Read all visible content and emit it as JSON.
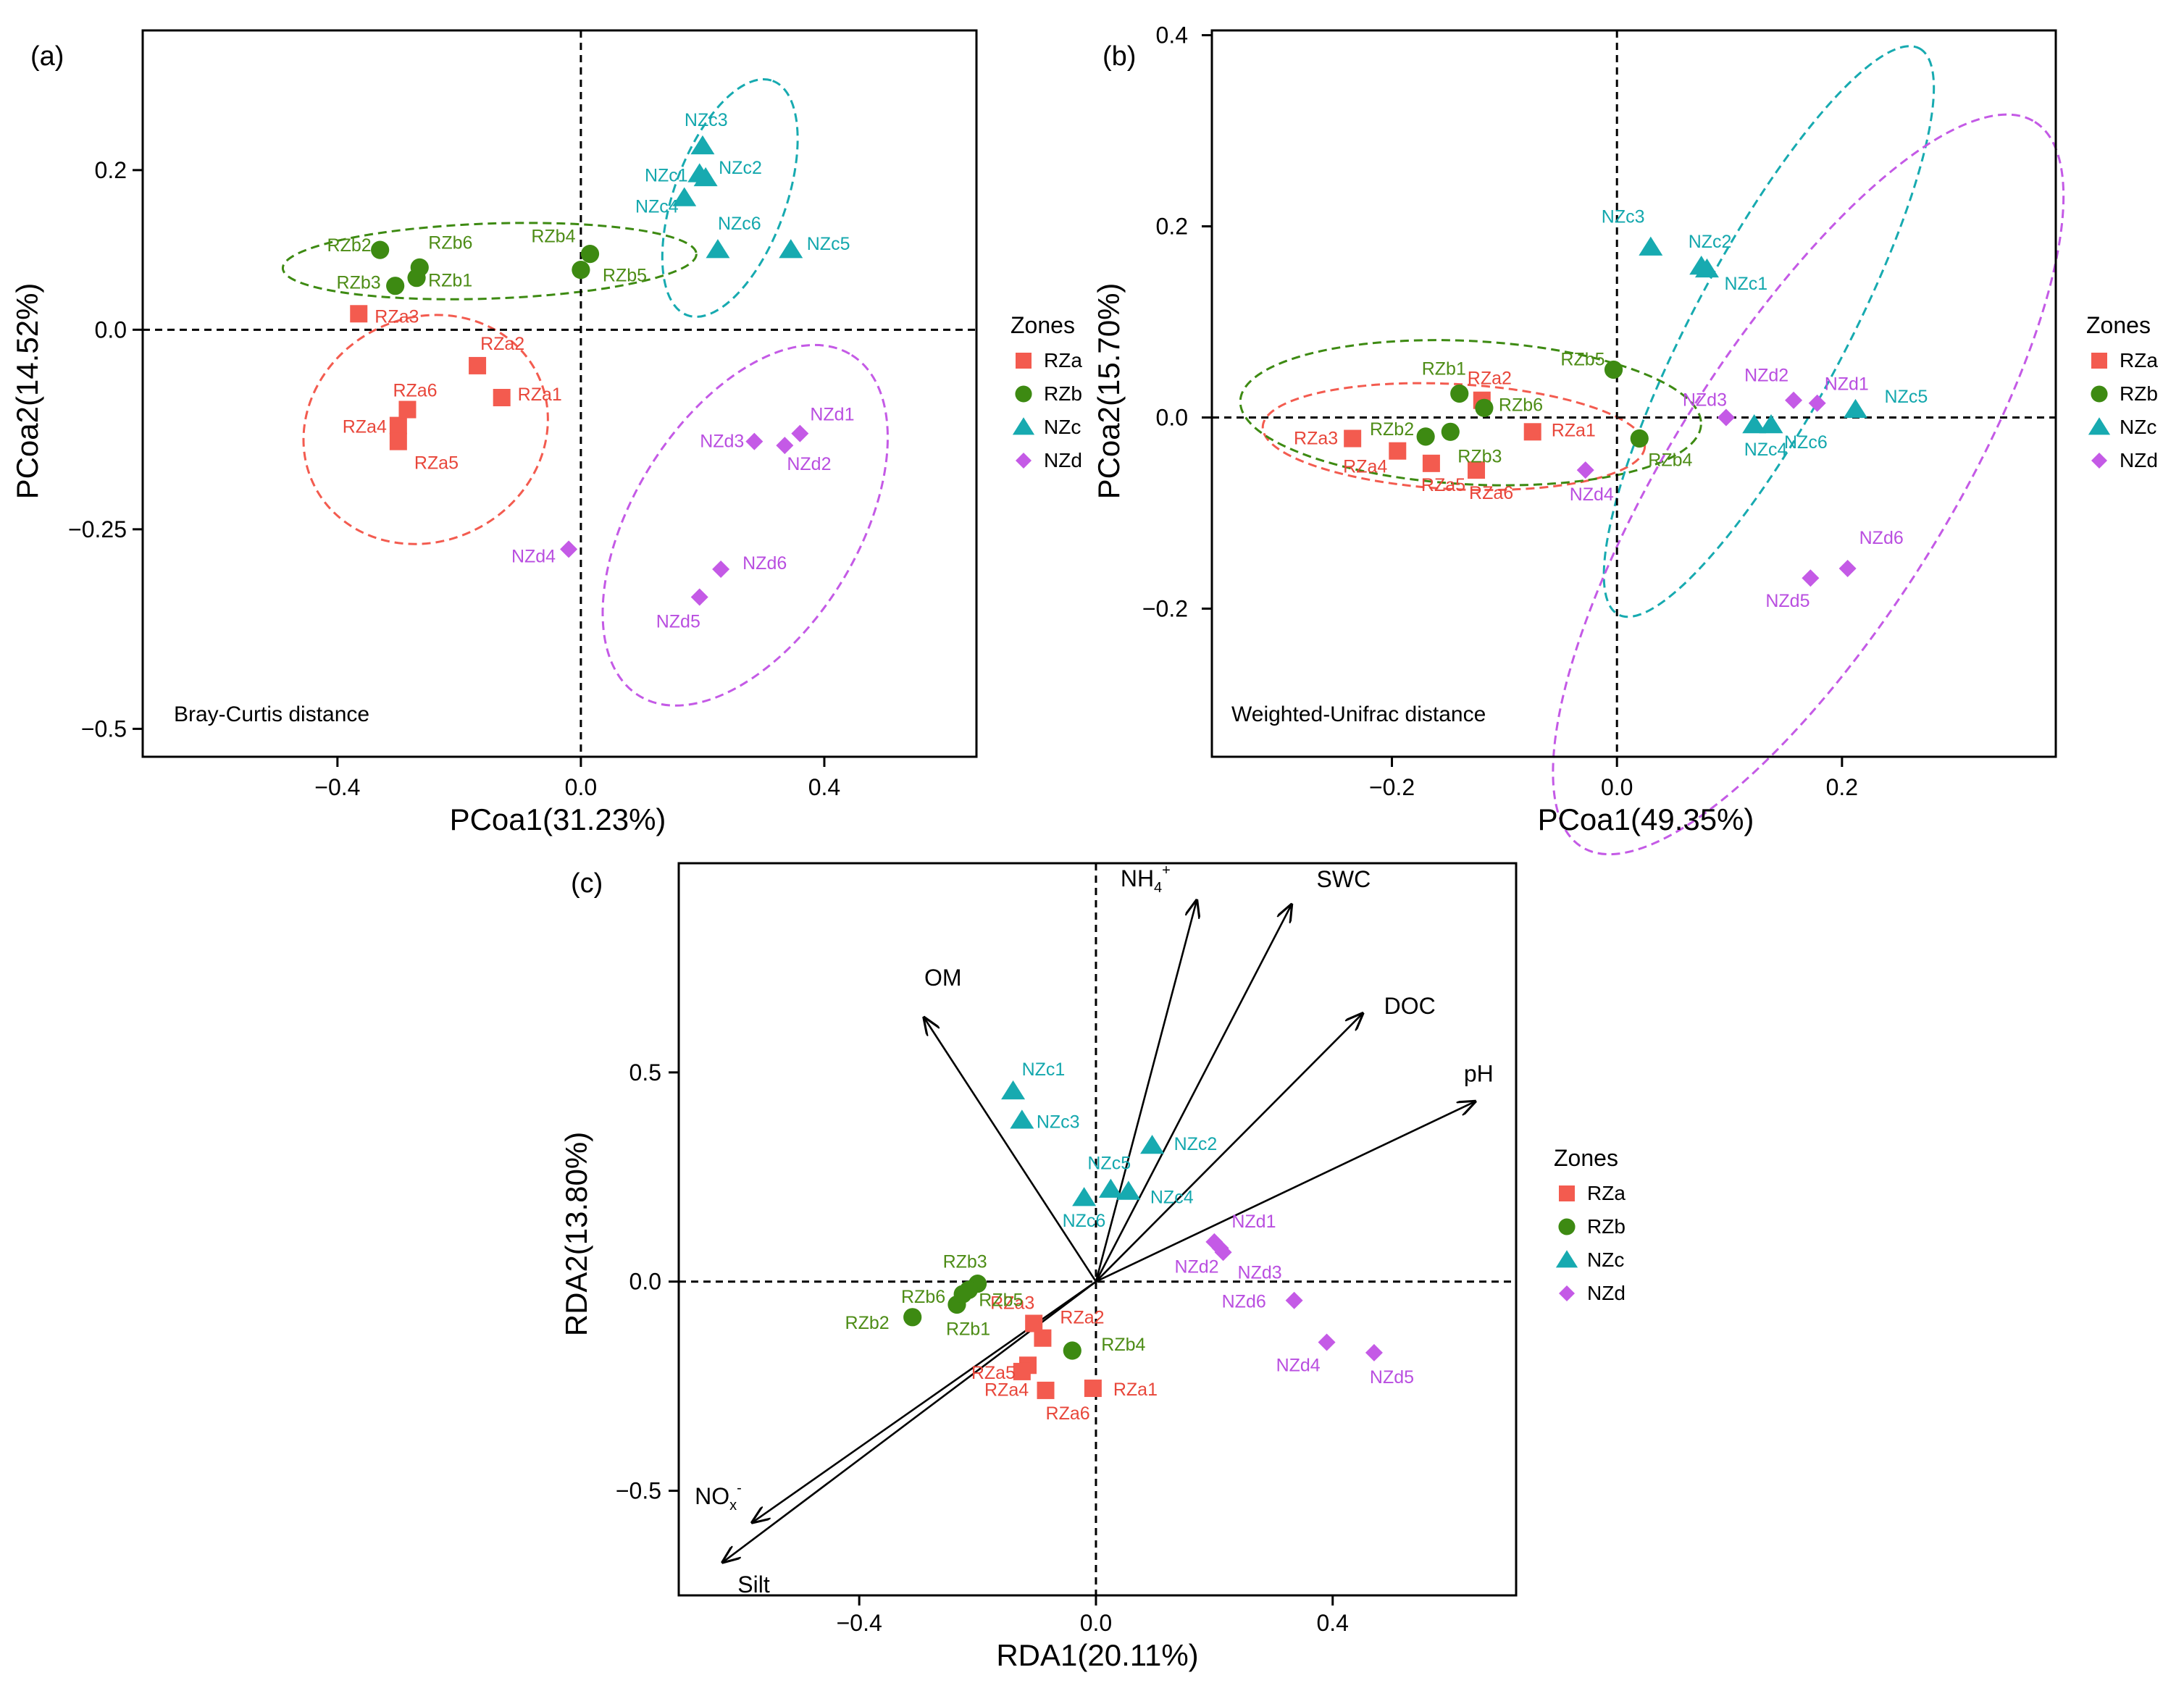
{
  "colors": {
    "RZa": "#f35b4f",
    "RZb": "#3d8a12",
    "NZc": "#17aab0",
    "NZd": "#c45ae6",
    "RZa_label": "#e8463a",
    "RZb_label": "#4d8c16",
    "NZc_label": "#13a7ad",
    "NZd_label": "#b94ee0",
    "axis": "#000000",
    "background": "#ffffff"
  },
  "chart_data": [
    {
      "id": "a",
      "type": "scatter",
      "panel_label": "(a)",
      "annotation": "Bray-Curtis distance",
      "xlabel": "PCoa1(31.23%)",
      "ylabel": "PCoa2(14.52%)",
      "xlim": [
        -0.72,
        0.65
      ],
      "ylim": [
        -0.535,
        0.375
      ],
      "xticks": [
        -0.4,
        0.0,
        0.4
      ],
      "xtick_labels": [
        "−0.4",
        "0.0",
        "0.4"
      ],
      "yticks": [
        -0.5,
        -0.25,
        0.0,
        0.2
      ],
      "ytick_labels": [
        "−0.5",
        "−0.25",
        "0.0",
        "0.2"
      ],
      "reference_lines": {
        "x": 0,
        "y": 0
      },
      "legend": {
        "title": "Zones",
        "entries": [
          "RZa",
          "RZb",
          "NZc",
          "NZd"
        ],
        "position": "right"
      },
      "series": [
        {
          "name": "RZa",
          "marker": "square",
          "points": [
            {
              "label": "RZa1",
              "x": -0.13,
              "y": -0.085
            },
            {
              "label": "RZa2",
              "x": -0.17,
              "y": -0.045
            },
            {
              "label": "RZa3",
              "x": -0.365,
              "y": 0.02
            },
            {
              "label": "RZa4",
              "x": -0.3,
              "y": -0.12
            },
            {
              "label": "RZa5",
              "x": -0.3,
              "y": -0.14
            },
            {
              "label": "RZa6",
              "x": -0.285,
              "y": -0.1
            }
          ]
        },
        {
          "name": "RZb",
          "marker": "circle",
          "points": [
            {
              "label": "RZb1",
              "x": -0.27,
              "y": 0.065
            },
            {
              "label": "RZb2",
              "x": -0.33,
              "y": 0.1
            },
            {
              "label": "RZb3",
              "x": -0.305,
              "y": 0.055
            },
            {
              "label": "RZb4",
              "x": 0.015,
              "y": 0.095
            },
            {
              "label": "RZb5",
              "x": 0.0,
              "y": 0.075
            },
            {
              "label": "RZb6",
              "x": -0.265,
              "y": 0.078
            }
          ]
        },
        {
          "name": "NZc",
          "marker": "triangle",
          "points": [
            {
              "label": "NZc1",
              "x": 0.195,
              "y": 0.195
            },
            {
              "label": "NZc2",
              "x": 0.205,
              "y": 0.19
            },
            {
              "label": "NZc3",
              "x": 0.2,
              "y": 0.23
            },
            {
              "label": "NZc4",
              "x": 0.17,
              "y": 0.165
            },
            {
              "label": "NZc5",
              "x": 0.345,
              "y": 0.1
            },
            {
              "label": "NZc6",
              "x": 0.225,
              "y": 0.1
            }
          ]
        },
        {
          "name": "NZd",
          "marker": "diamond",
          "points": [
            {
              "label": "NZd1",
              "x": 0.36,
              "y": -0.13
            },
            {
              "label": "NZd2",
              "x": 0.335,
              "y": -0.145
            },
            {
              "label": "NZd3",
              "x": 0.285,
              "y": -0.14
            },
            {
              "label": "NZd4",
              "x": -0.02,
              "y": -0.275
            },
            {
              "label": "NZd5",
              "x": 0.195,
              "y": -0.335
            },
            {
              "label": "NZd6",
              "x": 0.23,
              "y": -0.3
            }
          ]
        }
      ],
      "ellipses": [
        {
          "group": "RZa",
          "cx": -0.255,
          "cy": -0.125,
          "rx": 0.205,
          "ry": 0.14,
          "angle": 27
        },
        {
          "group": "RZb",
          "cx": -0.15,
          "cy": 0.086,
          "rx": 0.34,
          "ry": 0.047,
          "angle": 2
        },
        {
          "group": "NZc",
          "cx": 0.245,
          "cy": 0.165,
          "rx": 0.205,
          "ry": 0.07,
          "angle": 70
        },
        {
          "group": "NZd",
          "cx": 0.27,
          "cy": -0.245,
          "rx": 0.33,
          "ry": 0.14,
          "angle": 58
        }
      ]
    },
    {
      "id": "b",
      "type": "scatter",
      "panel_label": "(b)",
      "annotation": "Weighted-Unifrac distance",
      "xlabel": "PCoa1(49.35%)",
      "ylabel": "PCoa2(15.70%)",
      "xlim": [
        -0.36,
        0.39
      ],
      "ylim": [
        -0.355,
        0.405
      ],
      "xticks": [
        -0.2,
        0.0,
        0.2
      ],
      "xtick_labels": [
        "−0.2",
        "0.0",
        "0.2"
      ],
      "yticks": [
        -0.2,
        0.0,
        0.2,
        0.4
      ],
      "ytick_labels": [
        "−0.2",
        "0.0",
        "0.2",
        "0.4"
      ],
      "reference_lines": {
        "x": 0,
        "y": 0
      },
      "legend": {
        "title": "Zones",
        "entries": [
          "RZa",
          "RZb",
          "NZc",
          "NZd"
        ],
        "position": "right"
      },
      "series": [
        {
          "name": "RZa",
          "marker": "square",
          "points": [
            {
              "label": "RZa1",
              "x": -0.075,
              "y": -0.015
            },
            {
              "label": "RZa2",
              "x": -0.12,
              "y": 0.018
            },
            {
              "label": "RZa3",
              "x": -0.235,
              "y": -0.022
            },
            {
              "label": "RZa4",
              "x": -0.195,
              "y": -0.035
            },
            {
              "label": "RZa5",
              "x": -0.165,
              "y": -0.048
            },
            {
              "label": "RZa6",
              "x": -0.125,
              "y": -0.055
            }
          ]
        },
        {
          "name": "RZb",
          "marker": "circle",
          "points": [
            {
              "label": "RZb1",
              "x": -0.14,
              "y": 0.025
            },
            {
              "label": "RZb2",
              "x": -0.17,
              "y": -0.02
            },
            {
              "label": "RZb3",
              "x": -0.148,
              "y": -0.015
            },
            {
              "label": "RZb4",
              "x": 0.02,
              "y": -0.022
            },
            {
              "label": "RZb5",
              "x": -0.003,
              "y": 0.05
            },
            {
              "label": "RZb6",
              "x": -0.118,
              "y": 0.01
            }
          ]
        },
        {
          "name": "NZc",
          "marker": "triangle",
          "points": [
            {
              "label": "NZc1",
              "x": 0.08,
              "y": 0.155
            },
            {
              "label": "NZc2",
              "x": 0.075,
              "y": 0.158
            },
            {
              "label": "NZc3",
              "x": 0.03,
              "y": 0.178
            },
            {
              "label": "NZc4",
              "x": 0.122,
              "y": -0.008
            },
            {
              "label": "NZc5",
              "x": 0.212,
              "y": 0.008
            },
            {
              "label": "NZc6",
              "x": 0.137,
              "y": -0.008
            }
          ]
        },
        {
          "name": "NZd",
          "marker": "diamond",
          "points": [
            {
              "label": "NZd1",
              "x": 0.178,
              "y": 0.015
            },
            {
              "label": "NZd2",
              "x": 0.157,
              "y": 0.018
            },
            {
              "label": "NZd3",
              "x": 0.097,
              "y": 0.0
            },
            {
              "label": "NZd4",
              "x": -0.028,
              "y": -0.055
            },
            {
              "label": "NZd5",
              "x": 0.172,
              "y": -0.168
            },
            {
              "label": "NZd6",
              "x": 0.205,
              "y": -0.158
            }
          ]
        }
      ],
      "ellipses": [
        {
          "group": "RZa",
          "cx": -0.145,
          "cy": -0.02,
          "rx": 0.17,
          "ry": 0.055,
          "angle": -3
        },
        {
          "group": "RZb",
          "cx": -0.13,
          "cy": 0.005,
          "rx": 0.205,
          "ry": 0.075,
          "angle": -3
        },
        {
          "group": "NZc",
          "cx": 0.135,
          "cy": 0.09,
          "rx": 0.285,
          "ry": 0.08,
          "angle": 62
        },
        {
          "group": "NZd",
          "cx": 0.17,
          "cy": -0.07,
          "rx": 0.38,
          "ry": 0.145,
          "angle": 58
        }
      ]
    },
    {
      "id": "c",
      "type": "scatter",
      "panel_label": "(c)",
      "xlabel": "RDA1(20.11%)",
      "ylabel": "RDA2(13.80%)",
      "xlim": [
        -0.705,
        0.71
      ],
      "ylim": [
        -0.75,
        1.0
      ],
      "xticks": [
        -0.4,
        0.0,
        0.4
      ],
      "xtick_labels": [
        "−0.4",
        "0.0",
        "0.4"
      ],
      "yticks": [
        -0.5,
        0.0,
        0.5
      ],
      "ytick_labels": [
        "−0.5",
        "0.0",
        "0.5"
      ],
      "reference_lines": {
        "x": 0,
        "y": 0
      },
      "legend": {
        "title": "Zones",
        "entries": [
          "RZa",
          "RZb",
          "NZc",
          "NZd"
        ],
        "position": "right"
      },
      "series": [
        {
          "name": "RZa",
          "marker": "square",
          "points": [
            {
              "label": "RZa1",
              "x": -0.005,
              "y": -0.255
            },
            {
              "label": "RZa2",
              "x": -0.09,
              "y": -0.135
            },
            {
              "label": "RZa3",
              "x": -0.105,
              "y": -0.1
            },
            {
              "label": "RZa4",
              "x": -0.115,
              "y": -0.2
            },
            {
              "label": "RZa5",
              "x": -0.125,
              "y": -0.215
            },
            {
              "label": "RZa6",
              "x": -0.085,
              "y": -0.26
            }
          ]
        },
        {
          "name": "RZb",
          "marker": "circle",
          "points": [
            {
              "label": "RZb1",
              "x": -0.235,
              "y": -0.055
            },
            {
              "label": "RZb2",
              "x": -0.31,
              "y": -0.085
            },
            {
              "label": "RZb3",
              "x": -0.2,
              "y": -0.005
            },
            {
              "label": "RZb4",
              "x": -0.04,
              "y": -0.165
            },
            {
              "label": "RZb5",
              "x": -0.215,
              "y": -0.02
            },
            {
              "label": "RZb6",
              "x": -0.225,
              "y": -0.03
            }
          ]
        },
        {
          "name": "NZc",
          "marker": "triangle",
          "points": [
            {
              "label": "NZc1",
              "x": -0.14,
              "y": 0.455
            },
            {
              "label": "NZc2",
              "x": 0.095,
              "y": 0.325
            },
            {
              "label": "NZc3",
              "x": -0.125,
              "y": 0.385
            },
            {
              "label": "NZc4",
              "x": 0.055,
              "y": 0.215
            },
            {
              "label": "NZc5",
              "x": 0.025,
              "y": 0.22
            },
            {
              "label": "NZc6",
              "x": -0.02,
              "y": 0.2
            }
          ]
        },
        {
          "name": "NZd",
          "marker": "diamond",
          "points": [
            {
              "label": "NZd1",
              "x": 0.2,
              "y": 0.095
            },
            {
              "label": "NZd2",
              "x": 0.215,
              "y": 0.07
            },
            {
              "label": "NZd3",
              "x": 0.21,
              "y": 0.08
            },
            {
              "label": "NZd4",
              "x": 0.39,
              "y": -0.145
            },
            {
              "label": "NZd5",
              "x": 0.47,
              "y": -0.17
            },
            {
              "label": "NZd6",
              "x": 0.335,
              "y": -0.045
            }
          ]
        }
      ],
      "vectors": [
        {
          "name": "NH4+",
          "x": 0.17,
          "y": 0.91
        },
        {
          "name": "SWC",
          "x": 0.33,
          "y": 0.9
        },
        {
          "name": "DOC",
          "x": 0.45,
          "y": 0.64
        },
        {
          "name": "pH",
          "x": 0.64,
          "y": 0.43
        },
        {
          "name": "OM",
          "x": -0.29,
          "y": 0.63
        },
        {
          "name": "NOx-",
          "x": -0.58,
          "y": -0.575
        },
        {
          "name": "Silt",
          "x": -0.63,
          "y": -0.67
        }
      ],
      "vector_label_text": {
        "NH4+": {
          "main": "NH",
          "sub": "4",
          "sup": "+"
        },
        "SWC": {
          "main": "SWC"
        },
        "DOC": {
          "main": "DOC"
        },
        "pH": {
          "main": "pH"
        },
        "OM": {
          "main": "OM"
        },
        "NOx-": {
          "main": "NO",
          "sub": "x",
          "sup": "-"
        },
        "Silt": {
          "main": "Silt"
        }
      }
    }
  ]
}
